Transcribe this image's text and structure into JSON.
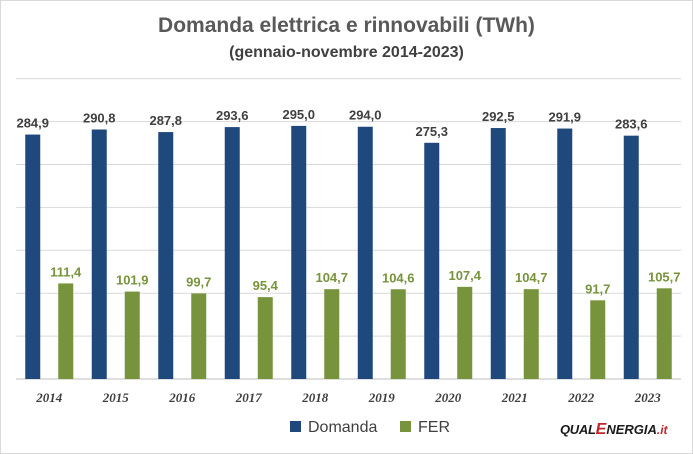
{
  "chart_data": {
    "type": "bar",
    "title": "Domanda elettrica e rinnovabili (TWh)",
    "subtitle": "(gennaio-novembre 2014-2023)",
    "categories": [
      "2014",
      "2015",
      "2016",
      "2017",
      "2018",
      "2019",
      "2020",
      "2021",
      "2022",
      "2023"
    ],
    "series": [
      {
        "name": "Domanda",
        "color": "#1f497d",
        "label_color": "#404040",
        "values": [
          284.9,
          290.8,
          287.8,
          293.6,
          295.0,
          294.0,
          275.3,
          292.5,
          291.9,
          283.6
        ],
        "labels": [
          "284,9",
          "290,8",
          "287,8",
          "293,6",
          "295,0",
          "294,0",
          "275,3",
          "292,5",
          "291,9",
          "283,6"
        ]
      },
      {
        "name": "FER",
        "color": "#77933c",
        "label_color": "#77933c",
        "values": [
          111.4,
          101.9,
          99.7,
          95.4,
          104.7,
          104.6,
          107.4,
          104.7,
          91.7,
          105.7
        ],
        "labels": [
          "111,4",
          "101,9",
          "99,7",
          "95,4",
          "104,7",
          "104,6",
          "107,4",
          "104,7",
          "91,7",
          "105,7"
        ]
      }
    ],
    "ylim": [
      0,
      350
    ],
    "y_axis_visible": false,
    "grid": true,
    "legend_position": "bottom"
  },
  "logo": {
    "text_a": "QUAL",
    "text_e": "E",
    "text_b": "NERGIA",
    "text_c": ".it"
  }
}
